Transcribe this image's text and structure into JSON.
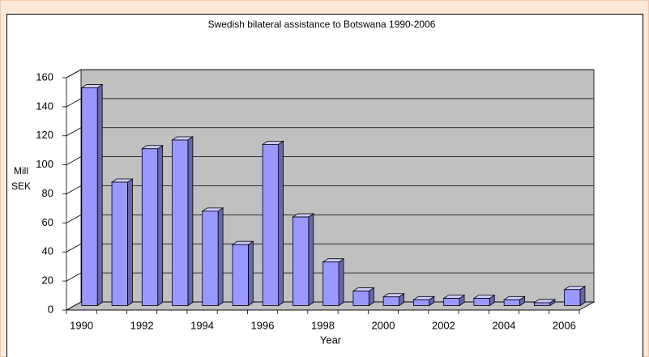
{
  "chart_data": {
    "type": "bar3d",
    "title": "Swedish bilateral assistance to Botswana 1990-2006",
    "x_label": "Year",
    "y_label": [
      "Mill",
      "SEK"
    ],
    "categories": [
      "1990",
      null,
      "1992",
      null,
      "1994",
      null,
      "1996",
      null,
      "1998",
      null,
      "2000",
      null,
      "2002",
      null,
      "2004",
      null,
      "2006"
    ],
    "values": [
      150,
      85,
      108,
      114,
      65,
      42,
      111,
      61,
      30,
      10,
      6,
      4,
      5,
      5,
      4,
      2,
      11
    ],
    "color": "#9999ff",
    "ylim": [
      0,
      160
    ],
    "yticks": [
      0,
      20,
      40,
      60,
      80,
      100,
      120,
      140,
      160
    ],
    "grid": true
  }
}
